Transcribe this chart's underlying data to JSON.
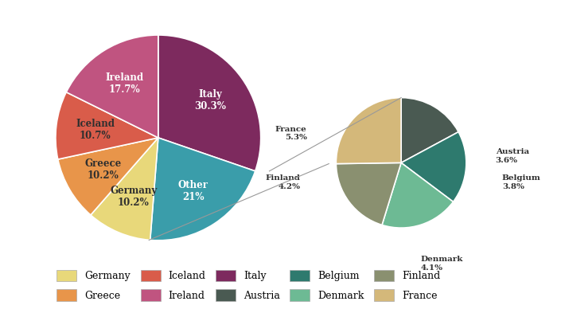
{
  "main_labels": [
    "Italy",
    "Other",
    "Germany",
    "Greece",
    "Iceland",
    "Ireland"
  ],
  "main_values": [
    30.3,
    21.0,
    10.2,
    10.2,
    10.7,
    17.7
  ],
  "main_colors": [
    "#7d2a5e",
    "#3a9daa",
    "#e8d87a",
    "#e8954a",
    "#d95c4a",
    "#c05480"
  ],
  "main_pct": [
    "30.3%",
    "21%",
    "10.2%",
    "10.2%",
    "10.7%",
    "17.7%"
  ],
  "main_label_colors": [
    "white",
    "white",
    "#2f2f2f",
    "#2f2f2f",
    "#2f2f2f",
    "white"
  ],
  "sub_labels": [
    "Austria",
    "Belgium",
    "Denmark",
    "Finland",
    "France"
  ],
  "sub_values": [
    3.6,
    3.8,
    4.1,
    4.2,
    5.3
  ],
  "sub_colors": [
    "#4a5a52",
    "#2e7a6e",
    "#6dba94",
    "#8a9070",
    "#d4b87a"
  ],
  "sub_pct": [
    "3.6%",
    "3.8%",
    "4.1%",
    "4.2%",
    "5.3%"
  ],
  "legend_labels": [
    "Germany",
    "Greece",
    "Iceland",
    "Ireland",
    "Italy",
    "Austria",
    "Belgium",
    "Denmark",
    "Finland",
    "France"
  ],
  "legend_colors": [
    "#e8d87a",
    "#e8954a",
    "#d95c4a",
    "#c05480",
    "#7d2a5e",
    "#4a5a52",
    "#2e7a6e",
    "#6dba94",
    "#8a9070",
    "#d4b87a"
  ],
  "bg_color": "#ffffff",
  "text_color": "#2f2f2f",
  "label_fontsize": 8.5,
  "sub_label_fontsize": 7.5,
  "legend_fontsize": 9
}
